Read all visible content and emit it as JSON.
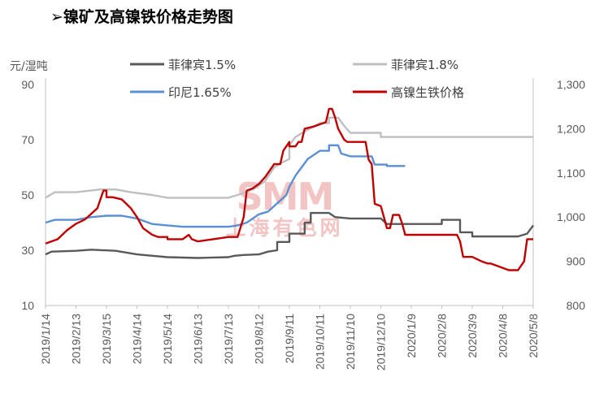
{
  "page": {
    "title": "➢镍矿及高镍铁价格走势图"
  },
  "watermark": {
    "logo": "SMM",
    "name": "上海有色网"
  },
  "chart_data": {
    "type": "line",
    "left_axis": {
      "unit": "元/湿吨",
      "min": 10,
      "max": 90,
      "ticks": [
        "10",
        "30",
        "50",
        "70",
        "90"
      ]
    },
    "right_axis": {
      "min": 800,
      "max": 1300,
      "ticks": [
        "800",
        "900",
        "1,000",
        "1,100",
        "1,200",
        "1,300"
      ]
    },
    "x_labels": [
      "2019/1/14",
      "2019/2/13",
      "2019/3/15",
      "2019/4/14",
      "2019/5/14",
      "2019/6/13",
      "2019/7/13",
      "2019/8/12",
      "2019/9/11",
      "2019/10/11",
      "2019/11/10",
      "2019/12/10",
      "2020/1/9",
      "2020/2/8",
      "2020/3/9",
      "2020/4/8",
      "2020/5/8"
    ],
    "legend_placement": "top",
    "grid": false,
    "series": [
      {
        "name": "菲律宾1.5%",
        "color": "#595959",
        "axis": "left",
        "points": [
          [
            0,
            28.5
          ],
          [
            0.2,
            29.5
          ],
          [
            1,
            29.8
          ],
          [
            1.5,
            30.2
          ],
          [
            2.3,
            29.8
          ],
          [
            3,
            28.5
          ],
          [
            3.5,
            28
          ],
          [
            4,
            27.5
          ],
          [
            5,
            27.2
          ],
          [
            6,
            27.5
          ],
          [
            6.2,
            28
          ],
          [
            6.5,
            28.3
          ],
          [
            7,
            28.5
          ],
          [
            7.3,
            29.5
          ],
          [
            7.6,
            30
          ],
          [
            7.6,
            33
          ],
          [
            8,
            33
          ],
          [
            8,
            36
          ],
          [
            8.5,
            36
          ],
          [
            8.5,
            40
          ],
          [
            8.7,
            40
          ],
          [
            8.7,
            43.5
          ],
          [
            9.3,
            43.5
          ],
          [
            9.5,
            42
          ],
          [
            10,
            41.5
          ],
          [
            11,
            41.5
          ],
          [
            11.2,
            39.5
          ],
          [
            12,
            39.5
          ],
          [
            13,
            39.5
          ],
          [
            13,
            41
          ],
          [
            13.6,
            41
          ],
          [
            13.6,
            36.5
          ],
          [
            14,
            36.5
          ],
          [
            14,
            35
          ],
          [
            15.5,
            35
          ],
          [
            15.8,
            36
          ],
          [
            16,
            39
          ]
        ]
      },
      {
        "name": "菲律宾1.8%",
        "color": "#bfbfbf",
        "axis": "left",
        "points": [
          [
            0,
            49
          ],
          [
            0.3,
            51
          ],
          [
            1,
            51
          ],
          [
            1.8,
            52
          ],
          [
            2.3,
            52
          ],
          [
            2.8,
            51
          ],
          [
            3.5,
            50
          ],
          [
            4,
            49
          ],
          [
            6,
            49
          ],
          [
            6.3,
            50
          ],
          [
            6.8,
            52
          ],
          [
            7.2,
            55
          ],
          [
            7.5,
            60
          ],
          [
            7.8,
            62
          ],
          [
            8,
            63
          ],
          [
            8,
            68
          ],
          [
            8.2,
            71
          ],
          [
            8.5,
            73
          ],
          [
            9,
            76
          ],
          [
            9.3,
            76
          ],
          [
            9.3,
            78
          ],
          [
            9.6,
            78
          ],
          [
            9.8,
            75
          ],
          [
            10,
            72.5
          ],
          [
            11,
            72.5
          ],
          [
            11,
            71
          ],
          [
            13,
            71
          ],
          [
            16,
            71
          ]
        ]
      },
      {
        "name": "印尼1.65%",
        "color": "#5b8fd4",
        "axis": "left",
        "points": [
          [
            0,
            40
          ],
          [
            0.3,
            41
          ],
          [
            1,
            41
          ],
          [
            1.5,
            42
          ],
          [
            2,
            42.5
          ],
          [
            2.5,
            42.5
          ],
          [
            3,
            41.5
          ],
          [
            3.5,
            39.5
          ],
          [
            4,
            39
          ],
          [
            4.5,
            38.5
          ],
          [
            6,
            38.5
          ],
          [
            6.3,
            39
          ],
          [
            6.6,
            40
          ],
          [
            7,
            43
          ],
          [
            7.3,
            44
          ],
          [
            7.5,
            46
          ],
          [
            7.7,
            48
          ],
          [
            7.9,
            50
          ],
          [
            8,
            53
          ],
          [
            8.2,
            57
          ],
          [
            8.4,
            60
          ],
          [
            8.6,
            63
          ],
          [
            9,
            66
          ],
          [
            9.3,
            66
          ],
          [
            9.3,
            68
          ],
          [
            9.6,
            68
          ],
          [
            9.7,
            65
          ],
          [
            10,
            64
          ],
          [
            10.7,
            64
          ],
          [
            10.8,
            61
          ],
          [
            11.2,
            61
          ],
          [
            11.2,
            60.5
          ],
          [
            11.8,
            60.5
          ]
        ]
      },
      {
        "name": "高镍生铁价格",
        "color": "#c00000",
        "axis": "right",
        "points": [
          [
            0,
            940
          ],
          [
            0.4,
            950
          ],
          [
            0.7,
            970
          ],
          [
            1,
            985
          ],
          [
            1.3,
            995
          ],
          [
            1.7,
            1020
          ],
          [
            1.8,
            1040
          ],
          [
            1.9,
            1060
          ],
          [
            2,
            1060
          ],
          [
            2,
            1045
          ],
          [
            2.2,
            1045
          ],
          [
            2.5,
            1040
          ],
          [
            2.8,
            1020
          ],
          [
            3,
            1000
          ],
          [
            3.2,
            975
          ],
          [
            3.5,
            960
          ],
          [
            3.7,
            955
          ],
          [
            4,
            955
          ],
          [
            4,
            950
          ],
          [
            4.5,
            950
          ],
          [
            4.7,
            960
          ],
          [
            4.8,
            950
          ],
          [
            5,
            945
          ],
          [
            5.5,
            950
          ],
          [
            6,
            955
          ],
          [
            6.3,
            955
          ],
          [
            6.5,
            1000
          ],
          [
            6.6,
            1060
          ],
          [
            6.8,
            1065
          ],
          [
            7,
            1075
          ],
          [
            7.2,
            1090
          ],
          [
            7.4,
            1110
          ],
          [
            7.5,
            1120
          ],
          [
            7.7,
            1120
          ],
          [
            7.8,
            1150
          ],
          [
            8,
            1170
          ],
          [
            8,
            1160
          ],
          [
            8.2,
            1160
          ],
          [
            8.3,
            1170
          ],
          [
            8.4,
            1170
          ],
          [
            8.5,
            1200
          ],
          [
            8.8,
            1205
          ],
          [
            9,
            1210
          ],
          [
            9.2,
            1215
          ],
          [
            9.3,
            1245
          ],
          [
            9.4,
            1245
          ],
          [
            9.5,
            1225
          ],
          [
            9.6,
            1200
          ],
          [
            9.8,
            1175
          ],
          [
            9.9,
            1170
          ],
          [
            10,
            1170
          ],
          [
            10.5,
            1170
          ],
          [
            10.6,
            1130
          ],
          [
            10.7,
            1120
          ],
          [
            10.8,
            1030
          ],
          [
            11,
            1025
          ],
          [
            11.1,
            1000
          ],
          [
            11.2,
            975
          ],
          [
            11.3,
            975
          ],
          [
            11.4,
            1005
          ],
          [
            11.6,
            1005
          ],
          [
            11.7,
            985
          ],
          [
            11.8,
            960
          ],
          [
            12,
            960
          ],
          [
            12,
            960
          ],
          [
            13,
            960
          ],
          [
            13.5,
            960
          ],
          [
            13.6,
            945
          ],
          [
            13.7,
            910
          ],
          [
            13.8,
            910
          ],
          [
            14,
            910
          ],
          [
            14.3,
            900
          ],
          [
            14.5,
            895
          ],
          [
            14.6,
            895
          ],
          [
            14.8,
            890
          ],
          [
            15,
            885
          ],
          [
            15.2,
            880
          ],
          [
            15.5,
            880
          ],
          [
            15.7,
            900
          ],
          [
            15.8,
            950
          ],
          [
            16,
            950
          ]
        ]
      }
    ]
  }
}
